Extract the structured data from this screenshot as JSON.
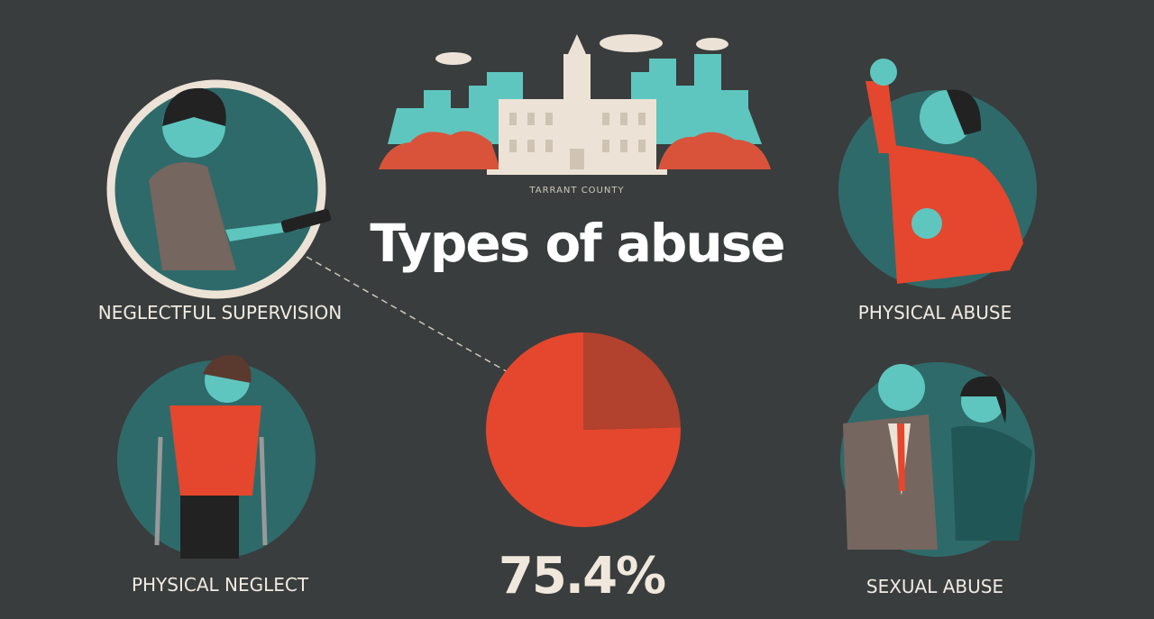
{
  "header": {
    "caption": "TARRANT COUNTY",
    "title": "Types of abuse"
  },
  "panels": [
    "NEGLECTFUL SUPERVISION",
    "PHYSICAL ABUSE",
    "PHYSICAL NEGLECT",
    "SEXUAL ABUSE"
  ],
  "chart_data": {
    "type": "pie",
    "values": [
      75.4,
      24.6
    ],
    "value_labels": [
      "75.4%",
      null
    ],
    "colors": [
      "#e4472d",
      "#b2412d"
    ]
  }
}
